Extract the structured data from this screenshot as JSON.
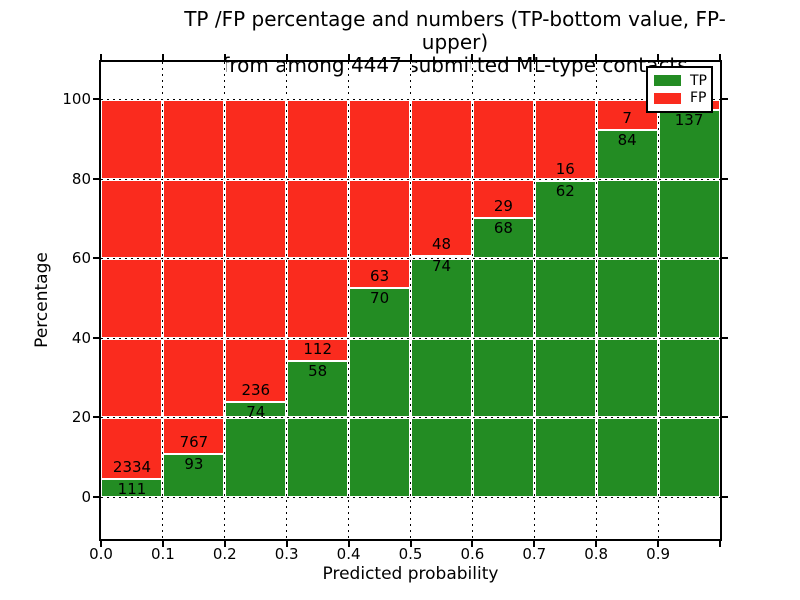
{
  "title": {
    "line1": "TP /FP percentage and numbers (TP-bottom value, FP-upper)",
    "line2": "from among 4447 submitted ML-type contacts"
  },
  "axes": {
    "xlabel": "Predicted probability",
    "ylabel": "Percentage",
    "xtick_labels": [
      "0.0",
      "0.1",
      "0.2",
      "0.3",
      "0.4",
      "0.5",
      "0.6",
      "0.7",
      "0.8",
      "0.9"
    ],
    "ytick_labels": [
      "0",
      "20",
      "40",
      "60",
      "80",
      "100"
    ]
  },
  "legend": {
    "items": [
      {
        "label": "TP",
        "color": "#238c23"
      },
      {
        "label": "FP",
        "color": "#fa2b1e"
      }
    ]
  },
  "colors": {
    "tp": "#238c23",
    "fp": "#fa2b1e",
    "grid_dots": "#000000",
    "grid_base": "#ffffff",
    "axis": "#000000",
    "background": "#ffffff"
  },
  "chart_data": {
    "type": "bar",
    "stacked": true,
    "title": "TP /FP percentage and numbers (TP-bottom value, FP-upper) from among 4447 submitted ML-type contacts",
    "xlabel": "Predicted probability",
    "ylabel": "Percentage",
    "categories": [
      "0.0-0.1",
      "0.1-0.2",
      "0.2-0.3",
      "0.3-0.4",
      "0.4-0.5",
      "0.5-0.6",
      "0.6-0.7",
      "0.7-0.8",
      "0.8-0.9",
      "0.9-1.0"
    ],
    "series": [
      {
        "name": "TP",
        "color": "#238c23",
        "counts": [
          111,
          93,
          74,
          58,
          70,
          74,
          68,
          62,
          84,
          137
        ],
        "pct": [
          4.54,
          10.81,
          23.87,
          34.12,
          52.63,
          60.66,
          70.1,
          79.49,
          92.31,
          97.16
        ]
      },
      {
        "name": "FP",
        "color": "#fa2b1e",
        "counts": [
          2334,
          767,
          236,
          112,
          63,
          48,
          29,
          16,
          7,
          null
        ],
        "pct": [
          95.46,
          89.19,
          76.13,
          65.88,
          47.37,
          39.34,
          29.9,
          20.51,
          7.69,
          2.84
        ]
      }
    ],
    "bar_value_labels": {
      "tp": [
        "111",
        "93",
        "74",
        "58",
        "70",
        "74",
        "68",
        "62",
        "84",
        "137"
      ],
      "fp": [
        "2334",
        "767",
        "236",
        "112",
        "63",
        "48",
        "29",
        "16",
        "7",
        ""
      ]
    },
    "xlim": [
      0,
      1
    ],
    "ylim": [
      -11,
      110
    ],
    "xticks": [
      0.0,
      0.1,
      0.2,
      0.3,
      0.4,
      0.5,
      0.6,
      0.7,
      0.8,
      0.9
    ],
    "yticks": [
      0,
      20,
      40,
      60,
      80,
      100
    ],
    "grid": true,
    "legend_position": "upper right"
  }
}
